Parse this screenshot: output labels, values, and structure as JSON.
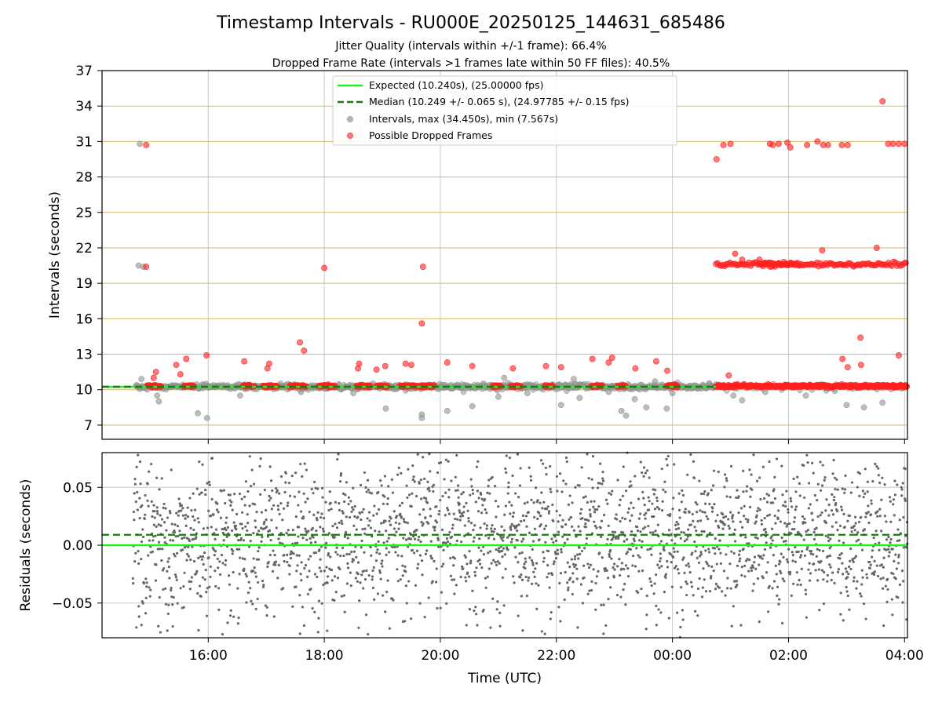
{
  "header": {
    "title": "Timestamp Intervals - RU000E_20250125_144631_685486",
    "subtitle_1": "Jitter Quality (intervals within +/-1 frame): 66.4%",
    "subtitle_2": "Dropped Frame Rate (intervals >1 frames late within 50 FF files): 40.5%"
  },
  "colors": {
    "expected": "#22ee22",
    "median": "#1a7a1a",
    "intervals": "#999999",
    "dropped": "#ff2020",
    "residuals": "#666666",
    "hgrid_top": "#d4b86a",
    "grid": "#c8c8c8"
  },
  "chart_data": [
    {
      "type": "scatter",
      "panel": "intervals",
      "ylabel": "Intervals (seconds)",
      "ylim": [
        5.8,
        37
      ],
      "yticks": [
        7,
        10,
        13,
        16,
        19,
        22,
        25,
        28,
        31,
        34,
        37
      ],
      "ytick_labels": [
        "7",
        "10",
        "13",
        "16",
        "19",
        "22",
        "25",
        "28",
        "31",
        "34",
        "37"
      ],
      "xlim_hours": [
        14.17,
        28.05
      ],
      "xticks_hours": [
        16,
        18,
        20,
        22,
        24,
        26,
        28
      ],
      "grid": "vertical + horizontal",
      "legend": {
        "placement": "top-center",
        "entries": [
          {
            "label": "Expected (10.240s), (25.00000 fps)",
            "kind": "line-solid"
          },
          {
            "label": "Median (10.249 +/- 0.065 s), (24.97785 +/- 0.15 fps)",
            "kind": "line-dashed"
          },
          {
            "label": "Intervals, max (34.450s), min (7.567s)",
            "kind": "marker-gray"
          },
          {
            "label": "Possible Dropped Frames",
            "kind": "marker-red"
          }
        ]
      },
      "expected_interval": 10.24,
      "median_interval": 10.249,
      "series": [
        {
          "name": "Intervals, max (34.450s), min (7.567s)",
          "baseline": 10.24,
          "outliers_xy": [
            [
              14.82,
              30.8
            ],
            [
              14.8,
              20.5
            ],
            [
              14.88,
              20.4
            ],
            [
              14.85,
              10.9
            ],
            [
              15.15,
              9.0
            ],
            [
              15.12,
              9.5
            ],
            [
              15.82,
              8.0
            ],
            [
              15.98,
              7.6
            ],
            [
              16.55,
              9.5
            ],
            [
              17.6,
              9.8
            ],
            [
              18.5,
              9.7
            ],
            [
              19.06,
              8.4
            ],
            [
              19.68,
              7.9
            ],
            [
              19.68,
              7.6
            ],
            [
              20.12,
              8.2
            ],
            [
              20.55,
              8.6
            ],
            [
              21.0,
              9.4
            ],
            [
              21.1,
              11.0
            ],
            [
              21.5,
              9.7
            ],
            [
              22.08,
              8.7
            ],
            [
              22.3,
              10.9
            ],
            [
              22.4,
              9.3
            ],
            [
              22.9,
              9.8
            ],
            [
              23.12,
              8.2
            ],
            [
              23.2,
              7.8
            ],
            [
              23.35,
              9.2
            ],
            [
              23.55,
              8.5
            ],
            [
              23.7,
              10.7
            ],
            [
              23.9,
              8.4
            ],
            [
              24.0,
              9.7
            ],
            [
              25.05,
              9.5
            ],
            [
              25.2,
              9.1
            ],
            [
              25.6,
              9.8
            ],
            [
              26.3,
              9.5
            ],
            [
              26.8,
              9.9
            ],
            [
              27.0,
              8.7
            ],
            [
              27.3,
              8.5
            ],
            [
              27.62,
              8.9
            ]
          ]
        },
        {
          "name": "Possible Dropped Frames",
          "points_xy": [
            [
              14.93,
              30.7
            ],
            [
              14.93,
              20.4
            ],
            [
              15.1,
              11.5
            ],
            [
              15.06,
              11.0
            ],
            [
              15.45,
              12.1
            ],
            [
              15.62,
              12.6
            ],
            [
              15.52,
              11.3
            ],
            [
              15.97,
              12.9
            ],
            [
              16.62,
              12.4
            ],
            [
              17.05,
              12.2
            ],
            [
              17.02,
              11.8
            ],
            [
              17.58,
              14.0
            ],
            [
              17.65,
              13.3
            ],
            [
              18.0,
              20.3
            ],
            [
              18.6,
              12.2
            ],
            [
              18.58,
              11.8
            ],
            [
              18.9,
              11.7
            ],
            [
              19.05,
              12.0
            ],
            [
              19.4,
              12.2
            ],
            [
              19.5,
              12.1
            ],
            [
              19.7,
              20.4
            ],
            [
              19.68,
              15.6
            ],
            [
              20.12,
              12.3
            ],
            [
              20.55,
              12.0
            ],
            [
              21.25,
              11.8
            ],
            [
              21.82,
              12.0
            ],
            [
              22.08,
              11.9
            ],
            [
              22.62,
              12.6
            ],
            [
              22.9,
              12.3
            ],
            [
              22.96,
              12.7
            ],
            [
              23.36,
              11.8
            ],
            [
              23.72,
              12.4
            ],
            [
              23.91,
              11.6
            ],
            [
              24.76,
              29.5
            ],
            [
              24.88,
              30.7
            ],
            [
              25.0,
              30.8
            ],
            [
              24.97,
              11.2
            ],
            [
              25.68,
              30.8
            ],
            [
              25.73,
              30.7
            ],
            [
              25.83,
              30.8
            ],
            [
              25.98,
              30.9
            ],
            [
              26.03,
              30.5
            ],
            [
              26.32,
              30.7
            ],
            [
              26.5,
              31.0
            ],
            [
              26.6,
              30.7
            ],
            [
              26.68,
              30.7
            ],
            [
              26.92,
              30.7
            ],
            [
              27.02,
              30.7
            ],
            [
              27.72,
              30.8
            ],
            [
              27.8,
              30.8
            ],
            [
              27.9,
              30.8
            ],
            [
              28.0,
              30.8
            ],
            [
              27.62,
              34.4
            ],
            [
              26.58,
              21.8
            ],
            [
              27.52,
              22.0
            ],
            [
              25.08,
              21.5
            ],
            [
              25.2,
              21.0
            ],
            [
              25.5,
              21.0
            ],
            [
              26.93,
              12.6
            ],
            [
              27.02,
              11.9
            ],
            [
              27.24,
              14.4
            ],
            [
              27.25,
              12.1
            ],
            [
              27.9,
              12.9
            ],
            [
              28.0,
              10.3
            ]
          ],
          "clusters": [
            {
              "y": 10.3,
              "x_ranges": [
                [
                  14.95,
                  15.2
                ],
                [
                  15.58,
                  15.75
                ],
                [
                  16.6,
                  16.8
                ],
                [
                  16.95,
                  17.2
                ],
                [
                  17.4,
                  17.7
                ],
                [
                  17.9,
                  18.2
                ],
                [
                  18.55,
                  18.8
                ],
                [
                  18.9,
                  19.1
                ],
                [
                  19.3,
                  19.9
                ],
                [
                  20.9,
                  21.05
                ],
                [
                  21.2,
                  21.4
                ],
                [
                  21.8,
                  21.95
                ],
                [
                  22.6,
                  22.8
                ],
                [
                  23.05,
                  23.2
                ],
                [
                  23.9,
                  24.1
                ],
                [
                  24.75,
                  28.05
                ]
              ]
            },
            {
              "y": 20.6,
              "x_ranges": [
                [
                  24.75,
                  26.2
                ],
                [
                  25.5,
                  28.05
                ]
              ]
            }
          ]
        },
        {
          "name": "Expected (10.240s), (25.00000 fps)",
          "y": 10.24
        },
        {
          "name": "Median (10.249 +/- 0.065 s), (24.97785 +/- 0.15 fps)",
          "y": 10.249
        }
      ]
    },
    {
      "type": "scatter",
      "panel": "residuals",
      "xlabel": "Time (UTC)",
      "ylabel": "Residuals (seconds)",
      "ylim": [
        -0.08,
        0.08
      ],
      "yticks": [
        -0.05,
        0.0,
        0.05
      ],
      "ytick_labels": [
        "−0.05",
        "0.00",
        "0.05"
      ],
      "xlim_hours": [
        14.17,
        28.05
      ],
      "xticks_hours": [
        16,
        18,
        20,
        22,
        24,
        26,
        28
      ],
      "xtick_labels": [
        "16:00",
        "18:00",
        "20:00",
        "22:00",
        "00:00",
        "02:00",
        "04:00"
      ],
      "expected_residual": 0.0,
      "median_residual": 0.009,
      "residual_spread_sd": 0.035,
      "x_range_points": [
        14.7,
        28.05
      ]
    }
  ]
}
